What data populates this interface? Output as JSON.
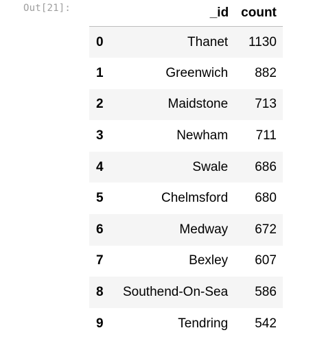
{
  "prompt": "Out[21]:",
  "table": {
    "columns": [
      "_id",
      "count"
    ],
    "rows": [
      {
        "index": "0",
        "_id": "Thanet",
        "count": "1130"
      },
      {
        "index": "1",
        "_id": "Greenwich",
        "count": "882"
      },
      {
        "index": "2",
        "_id": "Maidstone",
        "count": "713"
      },
      {
        "index": "3",
        "_id": "Newham",
        "count": "711"
      },
      {
        "index": "4",
        "_id": "Swale",
        "count": "686"
      },
      {
        "index": "5",
        "_id": "Chelmsford",
        "count": "680"
      },
      {
        "index": "6",
        "_id": "Medway",
        "count": "672"
      },
      {
        "index": "7",
        "_id": "Bexley",
        "count": "607"
      },
      {
        "index": "8",
        "_id": "Southend-On-Sea",
        "count": "586"
      },
      {
        "index": "9",
        "_id": "Tendring",
        "count": "542"
      }
    ]
  },
  "colors": {
    "prompt": "#9e9e9e",
    "stripe": "#f5f5f5",
    "header_rule": "#bdbdbd"
  }
}
